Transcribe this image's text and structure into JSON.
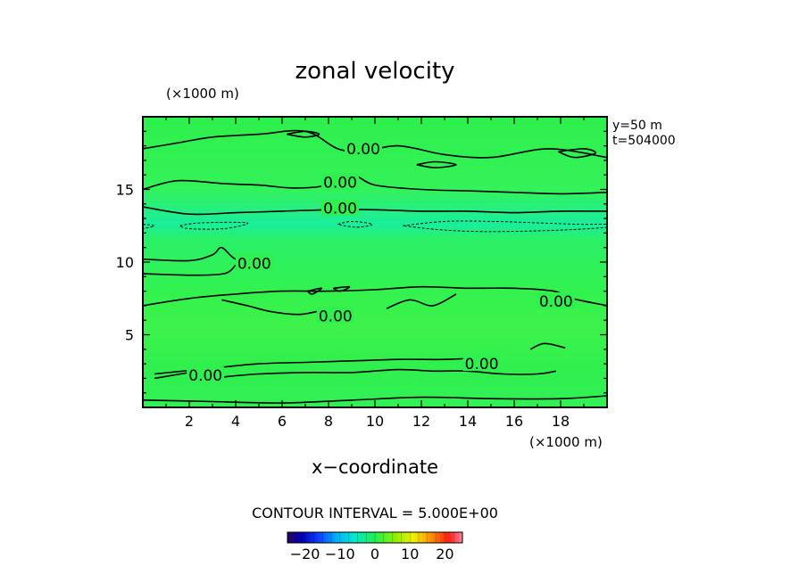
{
  "chart_data": {
    "type": "heatmap",
    "title": "zonal velocity",
    "xlabel": "x−coordinate",
    "ylabel": "",
    "x_scale_label": "(×1000 m)",
    "y_scale_label": "(×1000 m)",
    "xlim": [
      0,
      20
    ],
    "ylim": [
      0,
      20
    ],
    "x_ticks": [
      "2",
      "4",
      "6",
      "8",
      "10",
      "12",
      "14",
      "16",
      "18"
    ],
    "x_tick_values": [
      2,
      4,
      6,
      8,
      10,
      12,
      14,
      16,
      18
    ],
    "y_ticks": [
      "5",
      "10",
      "15"
    ],
    "y_tick_values": [
      5,
      10,
      15
    ],
    "annotations": [
      "y=50 m",
      "t=504000"
    ],
    "contour_interval_text": "CONTOUR INTERVAL = 5.000E+00",
    "contour_labels": [
      {
        "text": "0.00",
        "x": 9.5,
        "y": 17.8
      },
      {
        "text": "0.00",
        "x": 8.5,
        "y": 15.5
      },
      {
        "text": "0.00",
        "x": 8.5,
        "y": 13.7
      },
      {
        "text": "0.00",
        "x": 4.8,
        "y": 9.9
      },
      {
        "text": "0.00",
        "x": 8.3,
        "y": 6.3
      },
      {
        "text": "0.00",
        "x": 17.8,
        "y": 7.3
      },
      {
        "text": "0.00",
        "x": 2.7,
        "y": 2.2
      },
      {
        "text": "0.00",
        "x": 14.6,
        "y": 3.0
      }
    ],
    "colorbar": {
      "ticks": [
        "−20",
        "−10",
        "0",
        "10",
        "20"
      ],
      "tick_values": [
        -20,
        -10,
        0,
        10,
        20
      ],
      "range": [
        -25,
        25
      ]
    },
    "field_description_values": "near-zero zonal velocity everywhere (green), slightly negative band near y≈12.5",
    "contours": {
      "solid": [
        [
          [
            0,
            17.8
          ],
          [
            1.5,
            18.2
          ],
          [
            3,
            18.6
          ],
          [
            5,
            18.8
          ],
          [
            7,
            19.0
          ],
          [
            8.4,
            17.8
          ],
          [
            9.5,
            17.6
          ],
          [
            11,
            18.0
          ],
          [
            13,
            17.4
          ],
          [
            15,
            17.2
          ],
          [
            17.5,
            17.8
          ],
          [
            20,
            17.2
          ]
        ],
        [
          [
            0,
            15.0
          ],
          [
            1.5,
            15.6
          ],
          [
            3.5,
            15.4
          ],
          [
            5,
            15.3
          ],
          [
            6.5,
            15.1
          ],
          [
            8,
            15.3
          ],
          [
            9,
            16.0
          ],
          [
            10,
            15.3
          ],
          [
            12,
            15.0
          ],
          [
            14,
            14.9
          ],
          [
            16,
            14.8
          ],
          [
            18,
            14.7
          ],
          [
            20,
            14.8
          ]
        ],
        [
          [
            0,
            13.8
          ],
          [
            2,
            13.3
          ],
          [
            4,
            13.4
          ],
          [
            6,
            13.5
          ],
          [
            8,
            13.6
          ],
          [
            10,
            13.6
          ],
          [
            12,
            13.5
          ],
          [
            14,
            13.5
          ],
          [
            16,
            13.4
          ],
          [
            18,
            13.5
          ],
          [
            20,
            13.5
          ]
        ],
        [
          [
            0,
            10.2
          ],
          [
            2,
            10.1
          ],
          [
            3,
            10.5
          ],
          [
            3.4,
            11.0
          ],
          [
            4,
            10.2
          ],
          [
            5,
            10.0
          ],
          [
            5.6,
            9.8
          ]
        ],
        [
          [
            0,
            9.2
          ],
          [
            2,
            9.1
          ],
          [
            3.5,
            9.2
          ],
          [
            4,
            9.8
          ]
        ],
        [
          [
            0,
            7.0
          ],
          [
            2,
            7.5
          ],
          [
            4,
            7.8
          ],
          [
            6,
            8.0
          ],
          [
            8,
            8.0
          ],
          [
            10,
            8.1
          ],
          [
            12,
            8.3
          ],
          [
            14,
            8.2
          ],
          [
            16,
            8.2
          ],
          [
            17.7,
            8.0
          ],
          [
            18.5,
            7.5
          ],
          [
            20,
            7.0
          ]
        ],
        [
          [
            3.4,
            7.4
          ],
          [
            4.5,
            7.0
          ],
          [
            5.5,
            6.6
          ],
          [
            6.7,
            6.4
          ],
          [
            7.5,
            6.6
          ]
        ],
        [
          [
            10.5,
            6.8
          ],
          [
            11.5,
            7.4
          ],
          [
            12.5,
            7.0
          ],
          [
            13.5,
            7.8
          ]
        ],
        [
          [
            16.7,
            4.0
          ],
          [
            17.3,
            4.4
          ],
          [
            18.2,
            4.1
          ]
        ],
        [
          [
            0.5,
            2.3
          ],
          [
            3,
            2.7
          ],
          [
            5,
            3.0
          ],
          [
            7,
            3.1
          ],
          [
            9,
            3.2
          ],
          [
            11,
            3.3
          ],
          [
            13,
            3.3
          ],
          [
            14.3,
            3.4
          ]
        ],
        [
          [
            0.5,
            2.0
          ],
          [
            2,
            2.4
          ]
        ],
        [
          [
            3.5,
            2.1
          ],
          [
            5,
            2.3
          ],
          [
            7,
            2.4
          ],
          [
            9,
            2.4
          ],
          [
            11,
            2.6
          ],
          [
            12.5,
            2.5
          ],
          [
            14,
            2.5
          ],
          [
            15.5,
            2.3
          ],
          [
            17,
            2.3
          ],
          [
            17.8,
            2.5
          ]
        ],
        [
          [
            0,
            0.5
          ],
          [
            3,
            0.4
          ],
          [
            6,
            0.3
          ],
          [
            9,
            0.5
          ],
          [
            12,
            0.7
          ],
          [
            15,
            0.6
          ],
          [
            18,
            0.6
          ],
          [
            20,
            0.8
          ]
        ],
        [
          [
            6.2,
            18.8
          ],
          [
            7.0,
            19.0
          ],
          [
            7.6,
            18.8
          ],
          [
            7.0,
            18.6
          ],
          [
            6.2,
            18.8
          ]
        ],
        [
          [
            11.8,
            16.7
          ],
          [
            12.6,
            16.9
          ],
          [
            13.5,
            16.7
          ],
          [
            12.6,
            16.5
          ],
          [
            11.8,
            16.7
          ]
        ],
        [
          [
            17.9,
            17.6
          ],
          [
            19.0,
            17.8
          ],
          [
            19.5,
            17.5
          ],
          [
            18.6,
            17.2
          ],
          [
            17.9,
            17.6
          ]
        ],
        [
          [
            7.1,
            8.0
          ],
          [
            7.7,
            8.2
          ],
          [
            7.3,
            7.8
          ],
          [
            7.1,
            8.0
          ]
        ],
        [
          [
            8.2,
            8.2
          ],
          [
            8.9,
            8.3
          ],
          [
            8.5,
            8.0
          ],
          [
            8.2,
            8.2
          ]
        ]
      ],
      "dashed": [
        [
          [
            1.6,
            12.5
          ],
          [
            2.5,
            12.7
          ],
          [
            4.5,
            12.7
          ],
          [
            3.5,
            12.3
          ],
          [
            2.0,
            12.3
          ],
          [
            1.6,
            12.5
          ]
        ],
        [
          [
            8.4,
            12.6
          ],
          [
            9.0,
            12.8
          ],
          [
            9.9,
            12.6
          ],
          [
            9.2,
            12.4
          ],
          [
            8.4,
            12.6
          ]
        ],
        [
          [
            11.2,
            12.5
          ],
          [
            13,
            12.8
          ],
          [
            15,
            12.8
          ],
          [
            17,
            12.7
          ],
          [
            18.8,
            12.6
          ],
          [
            20,
            12.6
          ],
          [
            20,
            12.4
          ],
          [
            18,
            12.2
          ],
          [
            15,
            12.1
          ],
          [
            13,
            12.2
          ],
          [
            11.2,
            12.5
          ]
        ],
        [
          [
            0,
            12.6
          ],
          [
            0.5,
            12.5
          ],
          [
            0,
            12.3
          ]
        ]
      ]
    }
  }
}
